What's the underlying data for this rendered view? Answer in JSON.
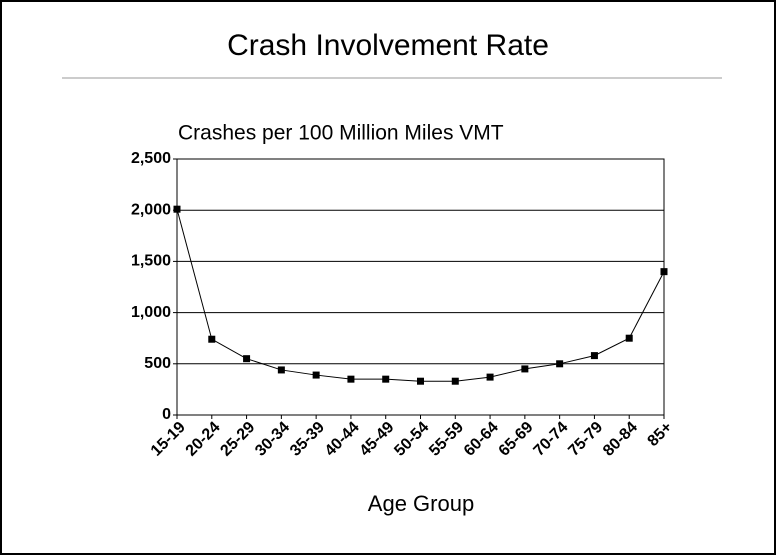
{
  "chart_data": {
    "type": "line",
    "title": "Crash Involvement Rate",
    "y_label": "Crashes per 100 Million Miles VMT",
    "x_label": "Age Group",
    "categories": [
      "15-19",
      "20-24",
      "25-29",
      "30-34",
      "35-39",
      "40-44",
      "45-49",
      "50-54",
      "55-59",
      "60-64",
      "65-69",
      "70-74",
      "75-79",
      "80-84",
      "85+"
    ],
    "values": [
      2010,
      740,
      550,
      440,
      390,
      350,
      350,
      330,
      330,
      370,
      450,
      500,
      580,
      750,
      1400
    ],
    "color": "#000000",
    "ylim": [
      0,
      2500
    ],
    "yticks": [
      0,
      500,
      {
        "value": 1000,
        "label": "1,000"
      },
      {
        "value": 1500,
        "label": "1,500"
      },
      {
        "value": 2000,
        "label": "2,000"
      },
      {
        "value": 2500,
        "label": "2,500"
      }
    ],
    "grid": true
  }
}
